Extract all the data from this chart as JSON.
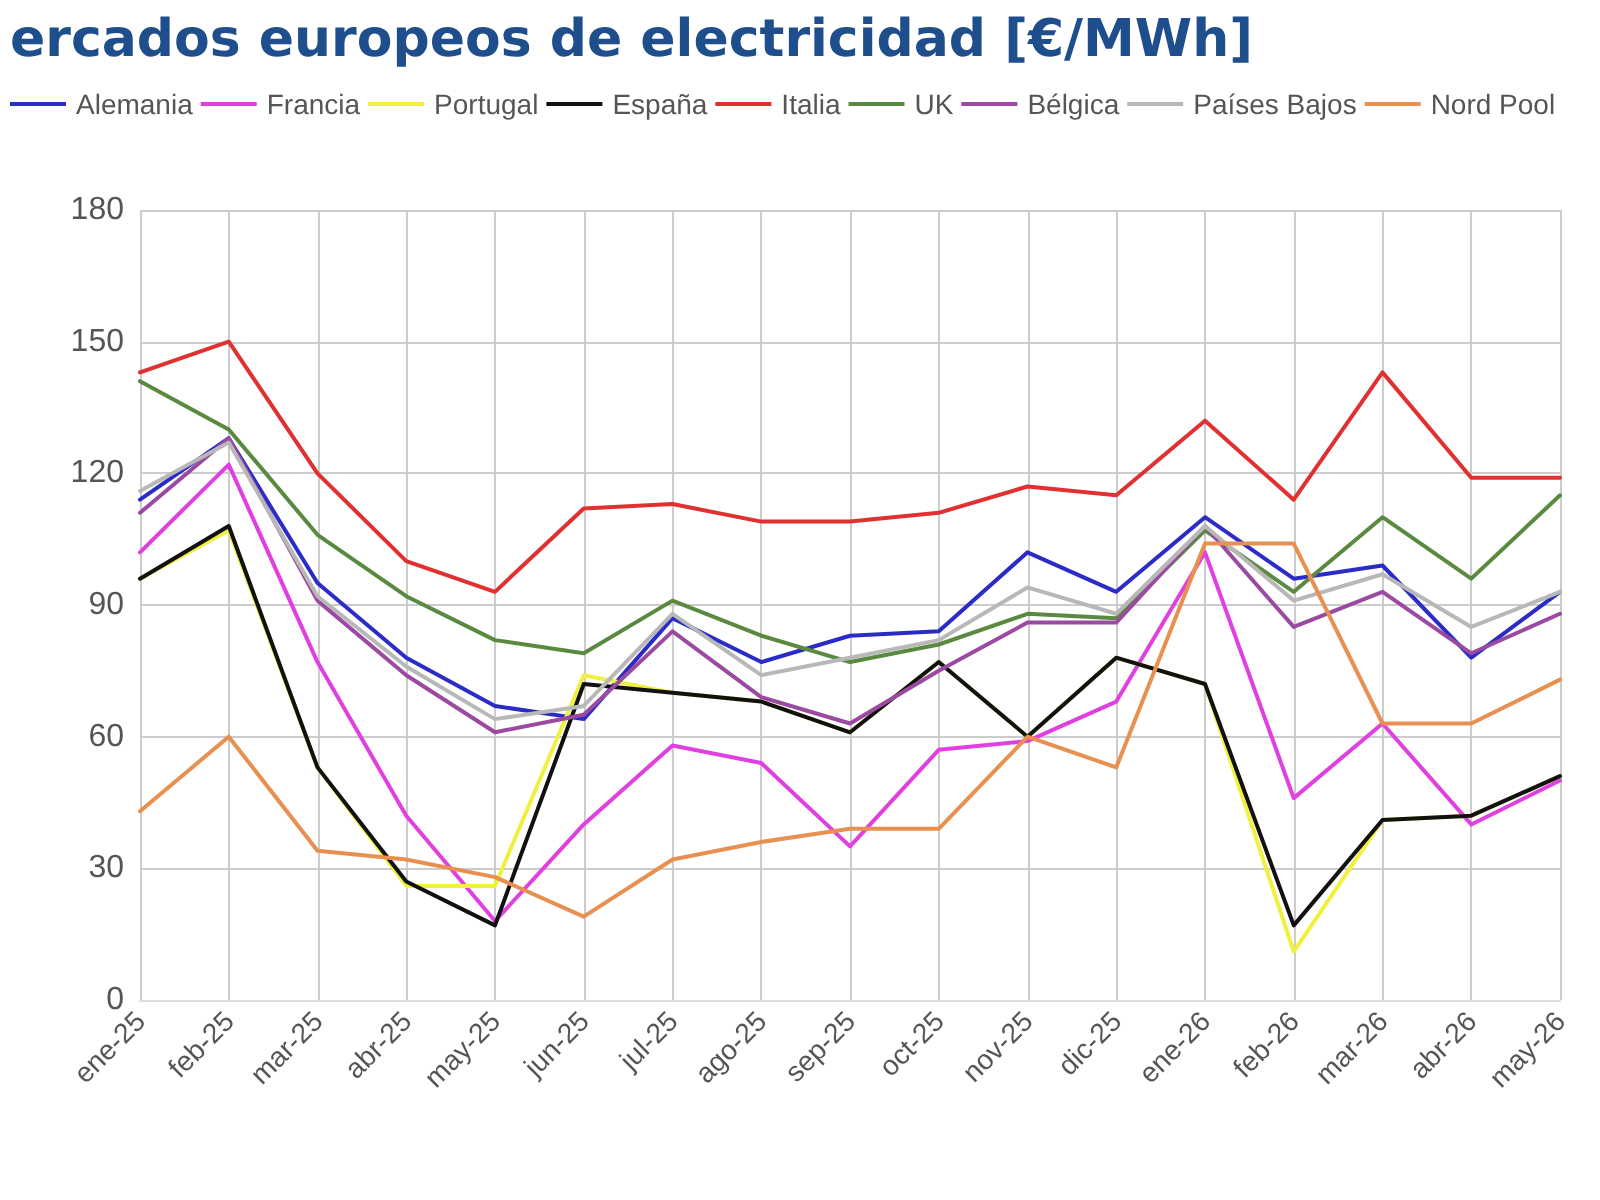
{
  "chart_data": {
    "type": "line",
    "title": "ercados europeos de electricidad [€/MWh]",
    "categories": [
      "ene-25",
      "feb-25",
      "mar-25",
      "abr-25",
      "may-25",
      "jun-25",
      "jul-25",
      "ago-25",
      "sep-25",
      "oct-25",
      "nov-25",
      "dic-25",
      "ene-26",
      "feb-26",
      "mar-26",
      "abr-26",
      "may-26"
    ],
    "series": [
      {
        "name": "Alemania",
        "color": "#2b2bc8",
        "values": [
          114,
          128,
          95,
          78,
          67,
          64,
          87,
          77,
          83,
          84,
          102,
          93,
          110,
          96,
          99,
          78,
          93
        ]
      },
      {
        "name": "Francia",
        "color": "#e040e0",
        "values": [
          102,
          122,
          77,
          42,
          18,
          40,
          58,
          54,
          35,
          57,
          59,
          68,
          102,
          46,
          63,
          40,
          50
        ]
      },
      {
        "name": "Portugal",
        "color": "#f0f040",
        "values": [
          96,
          107,
          53,
          26,
          26,
          74,
          70,
          68,
          61,
          77,
          60,
          78,
          72,
          11,
          41,
          42,
          51
        ]
      },
      {
        "name": "España",
        "color": "#111111",
        "values": [
          96,
          108,
          53,
          27,
          17,
          72,
          70,
          68,
          61,
          77,
          60,
          78,
          72,
          17,
          41,
          42,
          51
        ]
      },
      {
        "name": "Italia",
        "color": "#e03030",
        "values": [
          143,
          150,
          120,
          100,
          93,
          112,
          113,
          109,
          109,
          111,
          117,
          115,
          132,
          114,
          143,
          119,
          119
        ]
      },
      {
        "name": "UK",
        "color": "#5a8a40",
        "values": [
          141,
          130,
          106,
          92,
          82,
          79,
          91,
          83,
          77,
          81,
          88,
          87,
          107,
          93,
          110,
          96,
          115
        ]
      },
      {
        "name": "Bélgica",
        "color": "#9a4aa0",
        "values": [
          111,
          128,
          91,
          74,
          61,
          65,
          84,
          69,
          63,
          75,
          86,
          86,
          108,
          85,
          93,
          79,
          88
        ]
      },
      {
        "name": "Países Bajos",
        "color": "#b8b8b8",
        "values": [
          116,
          127,
          92,
          76,
          64,
          67,
          88,
          74,
          78,
          82,
          94,
          88,
          108,
          91,
          97,
          85,
          93
        ]
      },
      {
        "name": "Nord Pool",
        "color": "#e89050",
        "values": [
          43,
          60,
          34,
          32,
          28,
          19,
          32,
          36,
          39,
          39,
          60,
          53,
          104,
          104,
          63,
          63,
          73
        ]
      }
    ],
    "ylim": [
      0,
      180
    ],
    "yticks": [
      0,
      30,
      60,
      90,
      120,
      150,
      180
    ],
    "grid": true,
    "legend": "top",
    "marker": "none",
    "line_style": "solid"
  }
}
